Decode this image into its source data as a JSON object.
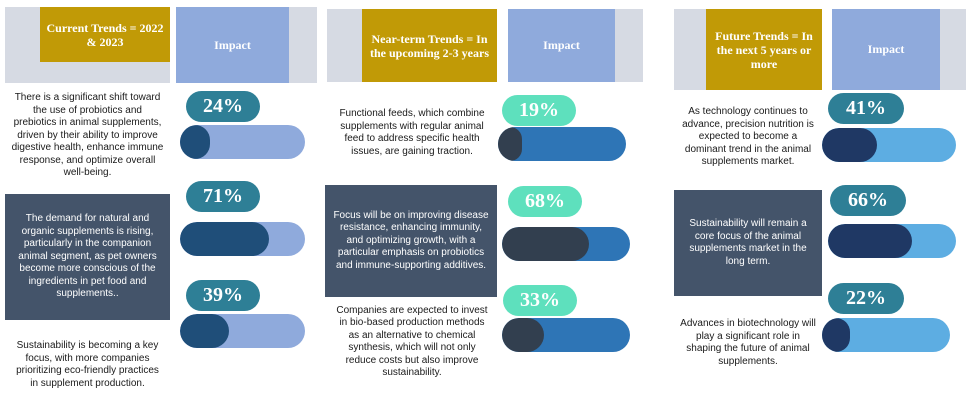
{
  "colors": {
    "gold": "#c19a06",
    "impact_header": "#8faadc",
    "frame_grey": "#d6dae3",
    "dark_box": "#44546a",
    "teal_dark": "#2e7f96",
    "teal_light": "#5ee0bd",
    "navy": "#1f4e79",
    "slate": "#323f4f",
    "indigo": "#1f3864",
    "blue_light": "#8faadc",
    "blue_mid": "#2e75b6",
    "blue_sky": "#5dade2"
  },
  "columns": [
    {
      "header": "Current Trends = 2022 & 2023",
      "impact_label": "Impact",
      "items": [
        {
          "text": "There is a significant shift toward the use of probiotics and prebiotics in animal supplements, driven by their ability to improve digestive health, enhance immune response, and optimize overall well-being.",
          "percent_label": "24%",
          "value": 24
        },
        {
          "text": "The demand for natural and organic supplements is rising, particularly in the companion animal segment, as pet owners become more conscious of the ingredients in pet food and supplements..",
          "percent_label": "71%",
          "value": 71
        },
        {
          "text": "Sustainability is becoming a key focus, with more companies prioritizing eco-friendly practices in supplement production.",
          "percent_label": "39%",
          "value": 39
        }
      ]
    },
    {
      "header": "Near-term Trends = In the upcoming 2-3 years",
      "impact_label": "Impact",
      "items": [
        {
          "text": "Functional feeds, which combine supplements with regular animal feed to address specific health issues, are gaining traction.",
          "percent_label": "19%",
          "value": 19
        },
        {
          "text": "Focus will be on improving disease resistance, enhancing immunity, and optimizing growth, with a particular emphasis on probiotics and immune-supporting additives.",
          "percent_label": "68%",
          "value": 68
        },
        {
          "text": "Companies are expected to invest in bio-based production methods as an alternative to chemical synthesis, which will not only reduce costs but also improve sustainability.",
          "percent_label": "33%",
          "value": 33
        }
      ]
    },
    {
      "header": "Future Trends = In the next 5 years or more",
      "impact_label": "Impact",
      "items": [
        {
          "text": "As technology continues to advance, precision nutrition is expected to become a dominant trend in the animal supplements market.",
          "percent_label": "41%",
          "value": 41
        },
        {
          "text": "Sustainability will remain a core focus of the animal supplements market in the long term.",
          "percent_label": "66%",
          "value": 66
        },
        {
          "text": "Advances in biotechnology will play a significant role in shaping the future of animal supplements.",
          "percent_label": "22%",
          "value": 22
        }
      ]
    }
  ]
}
